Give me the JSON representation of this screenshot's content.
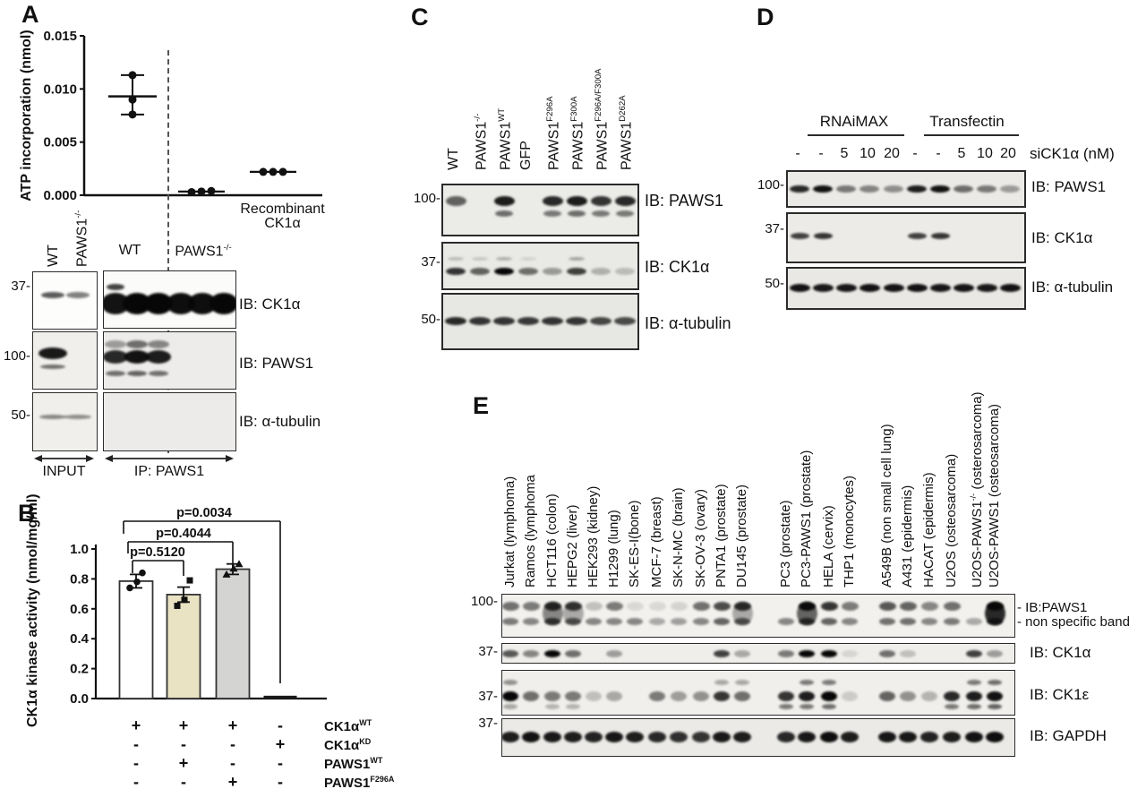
{
  "figure": {
    "panels": {
      "A": {
        "label": "A",
        "input_lane_labels": [
          "WT",
          "PAWS1~-/-~"
        ],
        "ip_group_labels": [
          "WT",
          "PAWS1~-/-~"
        ],
        "recombinant_label": "Recombinant\nCK1α",
        "rows": [
          {
            "mw": "37-",
            "ib": "IB: CK1α"
          },
          {
            "mw": "100-",
            "ib": "IB: PAWS1"
          },
          {
            "mw": "50-",
            "ib": "IB: α-tubulin"
          }
        ],
        "input_caption": "INPUT",
        "ip_caption": "IP: PAWS1"
      },
      "B": {
        "label": "B",
        "ylabel_display": "CK1α kinase activity\n(nmol/mg/ml)"
      },
      "C": {
        "label": "C",
        "lanes": [
          "WT",
          "PAWS1~-/-~",
          "PAWS1~WT~",
          "GFP",
          "PAWS1~F296A~",
          "PAWS1~F300A~",
          "PAWS1~F296A/F300A~",
          "PAWS1~D262A~"
        ],
        "rows": [
          {
            "mw": "100-",
            "ib": "IB: PAWS1"
          },
          {
            "mw": "37-",
            "ib": "IB: CK1α"
          },
          {
            "mw": "50-",
            "ib": "IB: α-tubulin"
          }
        ]
      },
      "D": {
        "label": "D",
        "group_headers": [
          "RNAiMAX",
          "Transfectin"
        ],
        "lane_doses": [
          "-",
          "-",
          "5",
          "10",
          "20",
          "-",
          "-",
          "5",
          "10",
          "20"
        ],
        "dose_caption": "siCK1α (nM)",
        "rows": [
          {
            "mw": "100-",
            "ib": "IB: PAWS1"
          },
          {
            "mw": "37-",
            "ib": "IB: CK1α"
          },
          {
            "mw": "50-",
            "ib": "IB: α-tubulin"
          }
        ]
      },
      "E": {
        "label": "E",
        "lanes": [
          "Jurkat (lymphoma)",
          "Ramos (lymphoma",
          "HCT116 (colon)",
          "HEPG2 (liver)",
          "HEK293 (kidney)",
          "H1299 (lung)",
          "SK-ES-I(bone)",
          "MCF-7 (breast)",
          "SK-N-MC (brain)",
          "SK-OV-3 (ovary)",
          "PNTA1 (prostate)",
          "DU145 (prostate)",
          "PC3 (prostate)",
          "PC3-PAWS1 (prostate)",
          "HELA (cervix)",
          "THP1 (monocytes)",
          "A549B (non small cell lung)",
          "A431 (epidermis)",
          "HACAT (epidermis)",
          "U2OS (osteosarcoma)",
          "U2OS-PAWS1~-/-~ (osterosarcoma)",
          "U2OS-PAWS1 (osteosarcoma)"
        ],
        "mw_labels": [
          "100-",
          "37-",
          "37-",
          "37-"
        ],
        "row_labels": {
          "paws1_tick": "- IB:PAWS1",
          "nonspecific_tick": "- non specific band",
          "ck1a": "IB: CK1α",
          "ck1e": "IB: CK1ε",
          "gapdh": "IB: GAPDH"
        }
      }
    }
  },
  "chart_data": [
    {
      "id": "panel-A-scatter",
      "type": "scatter",
      "ylabel": "ATP incorporation (nmol)",
      "ylim": [
        0,
        0.015
      ],
      "yticks": [
        0,
        0.005,
        0.01,
        0.015
      ],
      "ytick_labels": [
        "0.000",
        "0.005",
        "0.010",
        "0.015"
      ],
      "groups": [
        {
          "label": "WT",
          "points": [
            0.0076,
            0.009,
            0.0113
          ],
          "mean": 0.0093,
          "error_low": 0.0076,
          "error_high": 0.0113
        },
        {
          "label": "PAWS1-/-",
          "points": [
            0.0003,
            0.00035,
            0.0004
          ],
          "mean": 0.00035
        },
        {
          "label": "Recombinant CK1α",
          "points": [
            0.0022,
            0.0022,
            0.0022
          ],
          "mean": 0.0022
        }
      ],
      "annotations": {
        "separator": "dashed vertical line between WT and PAWS1-/- groups"
      }
    },
    {
      "id": "panel-B-bars",
      "type": "bar",
      "ylabel": "CK1α kinase activity (nmol/mg/ml)",
      "ylim": [
        0,
        1.0
      ],
      "yticks": [
        0,
        0.2,
        0.4,
        0.6,
        0.8,
        1.0
      ],
      "ytick_labels": [
        "0.0",
        "0.2",
        "0.4",
        "0.6",
        "0.8",
        "1.0"
      ],
      "values": [
        0.785,
        0.695,
        0.865,
        0.01
      ],
      "errors": [
        0.045,
        0.05,
        0.035,
        0
      ],
      "points": [
        [
          0.74,
          0.78,
          0.84
        ],
        [
          0.62,
          0.66,
          0.79
        ],
        [
          0.83,
          0.87,
          0.9
        ],
        []
      ],
      "bar_colors": [
        "#ffffff",
        "#e9e3c3",
        "#d4d4d3",
        "#1a1a1a"
      ],
      "point_markers": [
        "circle",
        "square",
        "triangle",
        ""
      ],
      "pvalues": [
        {
          "label": "p=0.5120",
          "between": [
            1,
            2
          ]
        },
        {
          "label": "p=0.4044",
          "between": [
            1,
            3
          ]
        },
        {
          "label": "p=0.0034",
          "between": [
            1,
            4
          ]
        }
      ],
      "conditions": [
        {
          "label": "CK1α~WT~",
          "signs": [
            "+",
            "+",
            "+",
            "-"
          ]
        },
        {
          "label": "CK1α~KD~",
          "signs": [
            "-",
            "-",
            "-",
            "+"
          ]
        },
        {
          "label": "PAWS1~WT~",
          "signs": [
            "-",
            "+",
            "-",
            "-"
          ]
        },
        {
          "label": "PAWS1~F296A~",
          "signs": [
            "-",
            "-",
            "+",
            "-"
          ]
        }
      ]
    }
  ],
  "blot_data": {
    "A_ck1a_in": [
      {
        "dy": 25,
        "h": 7,
        "w": 26,
        "i": [
          0.65,
          0.5
        ]
      }
    ],
    "A_ck1a_ip": [
      {
        "dy": 17,
        "h": 7,
        "w": 20,
        "i": [
          0.75,
          0,
          0,
          0,
          0,
          0
        ]
      },
      {
        "dy": 36,
        "h": 24,
        "w": 32,
        "i": [
          0.95,
          1,
          1,
          0.97,
          0.97,
          1
        ]
      }
    ],
    "A_paws1_in": [
      {
        "dy": 23,
        "h": 13,
        "w": 32,
        "i": [
          0.92,
          0
        ]
      },
      {
        "dy": 38,
        "h": 5,
        "w": 28,
        "i": [
          0.55,
          0
        ]
      }
    ],
    "A_paws1_ip": [
      {
        "dy": 13,
        "h": 9,
        "w": 24,
        "i": [
          0.35,
          0.55,
          0.45,
          0,
          0,
          0
        ]
      },
      {
        "dy": 27,
        "h": 15,
        "w": 28,
        "i": [
          0.85,
          0.95,
          0.9,
          0,
          0,
          0
        ]
      },
      {
        "dy": 46,
        "h": 6,
        "w": 22,
        "i": [
          0.55,
          0.6,
          0.55,
          0,
          0,
          0
        ]
      }
    ],
    "A_tub_in": [
      {
        "dy": 26,
        "h": 5,
        "w": 30,
        "i": [
          0.45,
          0.42
        ]
      }
    ],
    "A_tub_ip": [],
    "C_paws1": [
      {
        "dy": 17,
        "h": 11,
        "w": 23,
        "i": [
          0.6,
          0,
          0.9,
          0,
          0.85,
          0.9,
          0.8,
          0.85
        ]
      },
      {
        "dy": 31,
        "h": 7,
        "w": 20,
        "i": [
          0,
          0,
          0.55,
          0,
          0.5,
          0.55,
          0.5,
          0.5
        ]
      }
    ],
    "C_ck1a": [
      {
        "dy": 17,
        "h": 4,
        "w": 18,
        "i": [
          0.2,
          0.15,
          0.25,
          0.1,
          0,
          0.3,
          0,
          0
        ]
      },
      {
        "dy": 31,
        "h": 8,
        "w": 22,
        "i": [
          0.8,
          0.6,
          1,
          0.55,
          0.35,
          0.75,
          0.25,
          0.2
        ]
      }
    ],
    "C_tub": [
      {
        "dy": 29,
        "h": 9,
        "w": 24,
        "i": [
          0.85,
          0.8,
          0.8,
          0.78,
          0.8,
          0.8,
          0.72,
          0.7
        ]
      }
    ],
    "D_paws1": [
      {
        "dy": 19,
        "h": 8,
        "w": 22,
        "i": [
          0.85,
          0.95,
          0.5,
          0.45,
          0.4,
          0.9,
          0.95,
          0.55,
          0.5,
          0.35
        ]
      }
    ],
    "D_ck1a": [
      {
        "dy": 24,
        "h": 7,
        "w": 21,
        "i": [
          0.75,
          0.8,
          0,
          0,
          0,
          0.75,
          0.8,
          0,
          0,
          0
        ]
      }
    ],
    "D_tub": [
      {
        "dy": 21,
        "h": 9,
        "w": 23,
        "i": [
          0.95,
          0.92,
          0.93,
          0.95,
          0.94,
          0.95,
          0.93,
          0.94,
          0.92,
          0.95
        ]
      }
    ],
    "E_paws1": [
      {
        "dy": 13,
        "h": 10,
        "w": 19,
        "i": [
          0.55,
          0.5,
          0.8,
          0.75,
          0.2,
          0.5,
          0.1,
          0.1,
          0.12,
          0.55,
          0.7,
          0.8,
          0,
          0.95,
          0.8,
          0.5,
          0.65,
          0.6,
          0.45,
          0.55,
          0,
          0.95
        ]
      },
      {
        "dy": 30,
        "h": 8,
        "w": 18,
        "i": [
          0.5,
          0.45,
          0.7,
          0.6,
          0.45,
          0.45,
          0.45,
          0.3,
          0.35,
          0.45,
          0.6,
          0.6,
          0.45,
          0.7,
          0.6,
          0.45,
          0.55,
          0.55,
          0.45,
          0.5,
          0.3,
          0.7
        ]
      },
      {
        "dy": 21,
        "h": 26,
        "w": 23,
        "i": [
          0,
          0,
          0.45,
          0.3,
          0,
          0,
          0,
          0,
          0,
          0,
          0,
          0.3,
          0,
          0.6,
          0,
          0,
          0,
          0,
          0,
          0,
          0,
          0.85
        ]
      }
    ],
    "E_ck1a": [
      {
        "dy": 11,
        "h": 8,
        "w": 18,
        "i": [
          0.65,
          0.45,
          1,
          0.55,
          0,
          0.35,
          0,
          0,
          0,
          0,
          0.75,
          0.3,
          0.5,
          1,
          1,
          0.1,
          0.55,
          0.2,
          0,
          0,
          0.75,
          0.35
        ]
      }
    ],
    "E_ck1e": [
      {
        "dy": 28,
        "h": 11,
        "w": 18,
        "i": [
          1,
          0.55,
          0.5,
          0.5,
          0.2,
          0.3,
          0,
          0.5,
          0.35,
          0.4,
          0.8,
          0.55,
          0.8,
          0.9,
          1,
          0.15,
          0.6,
          0.4,
          0.25,
          0.85,
          0.9,
          0.95
        ]
      },
      {
        "dy": 13,
        "h": 6,
        "w": 16,
        "i": [
          0.4,
          0,
          0,
          0,
          0,
          0,
          0,
          0,
          0,
          0,
          0.3,
          0.3,
          0,
          0.5,
          0.5,
          0,
          0,
          0,
          0,
          0,
          0.5,
          0.55
        ]
      },
      {
        "dy": 40,
        "h": 6,
        "w": 16,
        "i": [
          0.3,
          0,
          0.25,
          0.25,
          0,
          0,
          0,
          0,
          0,
          0,
          0,
          0,
          0.5,
          0.5,
          0.55,
          0,
          0,
          0,
          0,
          0.5,
          0.55,
          0.6
        ]
      }
    ],
    "E_gapdh": [
      {
        "dy": 20,
        "h": 12,
        "w": 20,
        "i": [
          0.9,
          0.95,
          0.92,
          0.9,
          0.88,
          0.93,
          0.9,
          0.85,
          0.82,
          0.8,
          0.92,
          0.9,
          0.85,
          0.92,
          0.97,
          0.9,
          0.93,
          0.92,
          0.88,
          0.9,
          0.95,
          0.97
        ]
      }
    ]
  }
}
